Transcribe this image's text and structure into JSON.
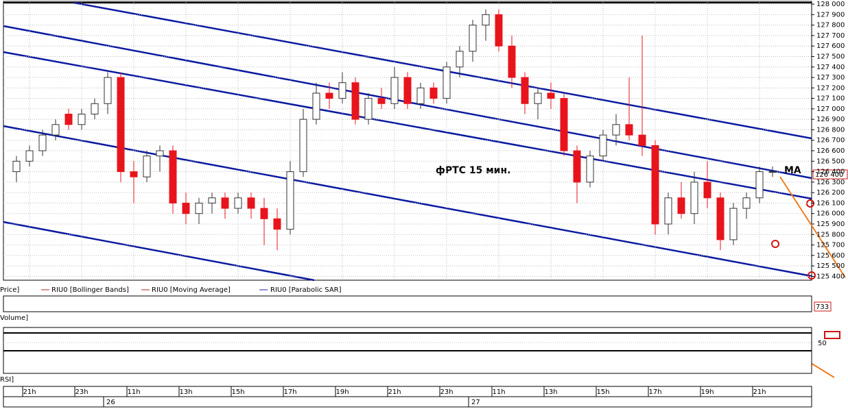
{
  "chart_data": {
    "type": "candlestick",
    "annotation": "фРТС   15 мин.",
    "ma_label": "MA",
    "last_price": {
      "value": 126400,
      "label": "126 400"
    },
    "legend": [
      "Price]",
      "RIU0 [Bollinger Bands]",
      "RIU0 [Moving Average]",
      "RIU0 [Parabolic SAR]"
    ],
    "panels": {
      "volume_label": "Volume]",
      "volume_value": "733",
      "rsi_label": "RSI]",
      "rsi_level": "50"
    },
    "x": [
      1,
      2,
      3,
      4,
      5,
      6,
      7,
      8,
      9,
      10,
      11,
      12,
      13,
      14,
      15,
      16,
      17,
      18,
      19,
      20,
      21,
      22,
      23,
      24,
      25,
      26,
      27,
      28,
      29,
      30,
      31,
      32,
      33,
      34,
      35,
      36,
      37,
      38,
      39,
      40,
      41,
      42,
      43,
      44,
      45,
      46,
      47,
      48,
      49,
      50,
      51,
      52,
      53,
      54,
      55,
      56,
      57,
      58,
      59
    ],
    "open": [
      126400,
      126500,
      126600,
      126750,
      126950,
      126850,
      126950,
      127050,
      127300,
      126400,
      126350,
      126550,
      126600,
      126100,
      126000,
      126100,
      126150,
      126050,
      126150,
      126050,
      125950,
      125850,
      126400,
      126900,
      127150,
      127100,
      127250,
      126900,
      127100,
      127050,
      127300,
      127050,
      127200,
      127100,
      127400,
      127550,
      127800,
      127900,
      127600,
      127300,
      127050,
      127150,
      127100,
      126600,
      126300,
      126550,
      126750,
      126850,
      126750,
      126650,
      125900,
      126150,
      126000,
      126300,
      126150,
      125750,
      126050,
      126150,
      126400
    ],
    "high": [
      126550,
      126650,
      126800,
      126900,
      127000,
      127000,
      127100,
      127350,
      127350,
      126500,
      126600,
      126650,
      126650,
      126200,
      126150,
      126200,
      126200,
      126200,
      126200,
      126150,
      126050,
      126500,
      127000,
      127250,
      127250,
      127350,
      127300,
      127150,
      127200,
      127400,
      127350,
      127250,
      127250,
      127450,
      127600,
      127850,
      127950,
      127950,
      127700,
      127350,
      127200,
      127250,
      127150,
      126650,
      126600,
      126800,
      126950,
      127300,
      127700,
      126700,
      126200,
      126300,
      126400,
      126500,
      126200,
      126100,
      126200,
      126450,
      126450
    ],
    "low": [
      126300,
      126450,
      126550,
      126700,
      126800,
      126800,
      126900,
      126950,
      126300,
      126100,
      126300,
      126400,
      126000,
      125900,
      125900,
      126000,
      125950,
      126000,
      125950,
      125700,
      125650,
      125800,
      126350,
      126850,
      127000,
      127050,
      126850,
      126850,
      127000,
      127000,
      127000,
      127000,
      127050,
      127050,
      127300,
      127450,
      127650,
      127550,
      127200,
      126950,
      126900,
      127000,
      126550,
      126100,
      126250,
      126500,
      126650,
      126700,
      126550,
      125800,
      125800,
      125950,
      125900,
      126050,
      125650,
      125700,
      125950,
      126100,
      126350
    ],
    "close": [
      126500,
      126600,
      126750,
      126850,
      126850,
      126950,
      127050,
      127300,
      126400,
      126350,
      126550,
      126600,
      126100,
      126000,
      126100,
      126150,
      126050,
      126150,
      126050,
      125950,
      125850,
      126400,
      126900,
      127150,
      127100,
      127250,
      126900,
      127100,
      127050,
      127300,
      127050,
      127200,
      127100,
      127400,
      127550,
      127800,
      127900,
      127600,
      127300,
      127050,
      127150,
      127100,
      126600,
      126300,
      126550,
      126750,
      126850,
      126750,
      126650,
      125900,
      126150,
      126000,
      126300,
      126150,
      125750,
      126050,
      126150,
      126400,
      126400
    ],
    "up_color": "#ffffff",
    "down_color": "#e8141c",
    "ylim": [
      125370,
      128020
    ],
    "yticks": [
      {
        "value": 125400,
        "label": "125 400"
      },
      {
        "value": 125500,
        "label": "125 500"
      },
      {
        "value": 125600,
        "label": "125 600"
      },
      {
        "value": 125700,
        "label": "125 700"
      },
      {
        "value": 125800,
        "label": "125 800"
      },
      {
        "value": 125900,
        "label": "125 900"
      },
      {
        "value": 126000,
        "label": "126 000"
      },
      {
        "value": 126100,
        "label": "126 100"
      },
      {
        "value": 126200,
        "label": "126 200"
      },
      {
        "value": 126300,
        "label": "126 300"
      },
      {
        "value": 126400,
        "label": "126 400"
      },
      {
        "value": 126500,
        "label": "126 500"
      },
      {
        "value": 126600,
        "label": "126 600"
      },
      {
        "value": 126700,
        "label": "126 700"
      },
      {
        "value": 126800,
        "label": "126 800"
      },
      {
        "value": 126900,
        "label": "126 900"
      },
      {
        "value": 127000,
        "label": "127 000"
      },
      {
        "value": 127100,
        "label": "127 100"
      },
      {
        "value": 127200,
        "label": "127 200"
      },
      {
        "value": 127300,
        "label": "127 300"
      },
      {
        "value": 127400,
        "label": "127 400"
      },
      {
        "value": 127500,
        "label": "127 500"
      },
      {
        "value": 127600,
        "label": "127 600"
      },
      {
        "value": 127700,
        "label": "127 700"
      },
      {
        "value": 127800,
        "label": "127 800"
      },
      {
        "value": 127900,
        "label": "127 900"
      },
      {
        "value": 128000,
        "label": "128 000"
      }
    ],
    "xlim": [
      0,
      62
    ],
    "xticks": [
      {
        "value": 2,
        "label": "21h"
      },
      {
        "value": 6,
        "label": "23h"
      },
      {
        "value": 10,
        "label": "11h"
      },
      {
        "value": 14,
        "label": "13h"
      },
      {
        "value": 18,
        "label": "15h"
      },
      {
        "value": 22,
        "label": "17h"
      },
      {
        "value": 26,
        "label": "19h"
      },
      {
        "value": 30,
        "label": "21h"
      },
      {
        "value": 34,
        "label": "23h"
      },
      {
        "value": 38,
        "label": "11h"
      },
      {
        "value": 42,
        "label": "13h"
      },
      {
        "value": 46,
        "label": "15h"
      },
      {
        "value": 50,
        "label": "17h"
      },
      {
        "value": 54,
        "label": "19h"
      },
      {
        "value": 58,
        "label": "21h"
      }
    ],
    "date_ticks": [
      {
        "value": 8,
        "label": "26"
      },
      {
        "value": 36,
        "label": "27"
      }
    ],
    "grid": true
  }
}
